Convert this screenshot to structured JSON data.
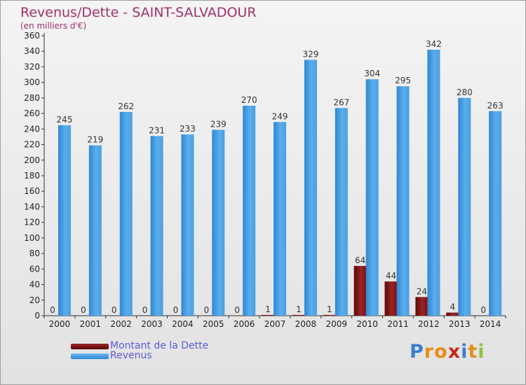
{
  "header": {
    "title": "Revenus/Dette - SAINT-SALVADOUR",
    "subtitle": "(en milliers d'€)"
  },
  "chart_data": {
    "type": "bar",
    "title": "Revenus/Dette - SAINT-SALVADOUR",
    "subtitle": "(en milliers d'€)",
    "xlabel": "",
    "ylabel": "",
    "ylim": [
      0,
      360
    ],
    "ytick_step": 20,
    "grid": false,
    "legend_position": "bottom-left",
    "categories": [
      "2000",
      "2001",
      "2002",
      "2003",
      "2004",
      "2005",
      "2006",
      "2007",
      "2008",
      "2009",
      "2010",
      "2011",
      "2012",
      "2013",
      "2014"
    ],
    "series": [
      {
        "name": "Montant de la Dette",
        "color": "#7a1010",
        "values": [
          0,
          0,
          0,
          0,
          0,
          0,
          0,
          1,
          1,
          1,
          64,
          44,
          24,
          4,
          0
        ]
      },
      {
        "name": "Revenus",
        "color": "#4aa0e6",
        "values": [
          245,
          219,
          262,
          231,
          233,
          239,
          270,
          249,
          329,
          267,
          304,
          295,
          342,
          280,
          263
        ]
      }
    ]
  },
  "legend": {
    "items": [
      {
        "label": "Montant de la Dette",
        "color": "#7a1010"
      },
      {
        "label": "Revenus",
        "color": "#4aa0e6"
      }
    ]
  },
  "logo": {
    "letters": [
      "P",
      "r",
      "o",
      "x",
      "i",
      "t",
      "i"
    ],
    "colors": [
      "#3b7fd0",
      "#e88d1a",
      "#e88d1a",
      "#c42a1a",
      "#3b7fd0",
      "#e88d1a",
      "#8cc63f"
    ]
  }
}
